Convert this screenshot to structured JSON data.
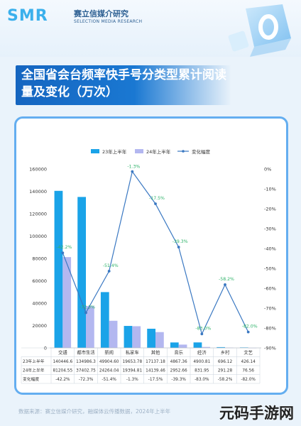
{
  "brand": {
    "logo": "SMR",
    "name_cn": "赛立信媒介研究",
    "name_en": "SELECTION MEDIA RESEARCH"
  },
  "title": "全国省会台频率快手号分类型累计阅读量及变化（万次）",
  "source": "数据来源：赛立信媒介研究，融媒体云传播数据，2024年上半年",
  "watermark": "元码手游网",
  "colors": {
    "bar_2023": "#1aa3e8",
    "bar_2024": "#b3b7f0",
    "line": "#3a78c2",
    "change_label": "#2fb36a",
    "title_band": "#1565c0",
    "card_border": "#64aef0"
  },
  "chart_data": {
    "type": "bar",
    "categories": [
      "交通",
      "都市生活",
      "新闻",
      "私家车",
      "其他",
      "音乐",
      "经济",
      "乡村",
      "文艺"
    ],
    "series": [
      {
        "name": "23年上半年",
        "type": "bar",
        "axis": "left",
        "values": [
          140446.6,
          134986.3,
          49904.6,
          19653.78,
          17137.18,
          4867.36,
          4900.81,
          696.12,
          426.14
        ]
      },
      {
        "name": "24年上半年",
        "type": "bar",
        "axis": "left",
        "values": [
          81204.55,
          37402.75,
          24264.04,
          19394.81,
          14139.46,
          2952.66,
          831.95,
          291.28,
          76.56
        ]
      },
      {
        "name": "变化幅度",
        "type": "line",
        "axis": "right",
        "values": [
          -42.2,
          -72.3,
          -51.4,
          -1.3,
          -17.5,
          -39.3,
          -83.0,
          -58.2,
          -82.0
        ],
        "labels": [
          "-42.2%",
          "-72.3%",
          "-51.4%",
          "-1.3%",
          "-17.5%",
          "-39.3%",
          "-83.0%",
          "-58.2%",
          "-82.0%"
        ]
      }
    ],
    "left_axis": {
      "ylim": [
        0,
        160000
      ],
      "ticks": [
        "0",
        "20000",
        "40000",
        "60000",
        "80000",
        "100000",
        "120000",
        "140000",
        "160000"
      ]
    },
    "right_axis": {
      "ylim": [
        -90,
        0
      ],
      "ticks": [
        "-90%",
        "-80%",
        "-70%",
        "-60%",
        "-50%",
        "-40%",
        "-30%",
        "-20%",
        "-10%",
        "0%"
      ]
    },
    "legend_position": "top-center",
    "table": {
      "row_labels": [
        "23年上半年",
        "24年上半年",
        "变化幅度"
      ],
      "rows": [
        [
          "140446.6",
          "134986.3",
          "49904.60",
          "19653.78",
          "17137.18",
          "4867.36",
          "4900.81",
          "696.12",
          "426.14"
        ],
        [
          "81204.55",
          "37402.75",
          "24264.04",
          "19394.81",
          "14139.46",
          "2952.66",
          "831.95",
          "291.28",
          "76.56"
        ],
        [
          "-42.2%",
          "-72.3%",
          "-51.4%",
          "-1.3%",
          "-17.5%",
          "-39.3%",
          "-83.0%",
          "-58.2%",
          "-82.0%"
        ]
      ]
    }
  }
}
